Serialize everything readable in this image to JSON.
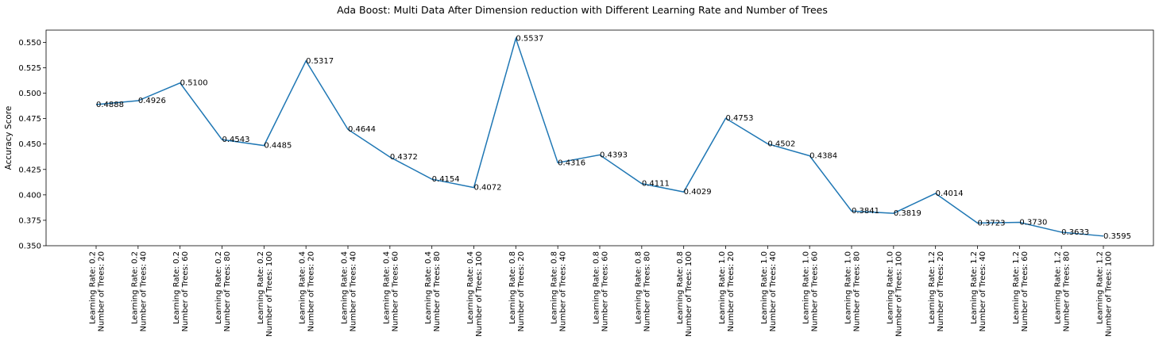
{
  "chart_data": {
    "type": "line",
    "title": "Ada Boost: Multi Data After Dimension reduction with Different Learning Rate and Number of Trees",
    "xlabel": "",
    "ylabel": "Accuracy Score",
    "ylim": [
      0.35,
      0.562
    ],
    "yticks": [
      "0.350",
      "0.375",
      "0.400",
      "0.425",
      "0.450",
      "0.475",
      "0.500",
      "0.525",
      "0.550"
    ],
    "grid": false,
    "line_color": "#1f77b4",
    "categories": [
      [
        "Learning Rate: 0.2",
        "Number of Trees: 20"
      ],
      [
        "Learning Rate: 0.2",
        "Number of Trees: 40"
      ],
      [
        "Learning Rate: 0.2",
        "Number of Trees: 60"
      ],
      [
        "Learning Rate: 0.2",
        "Number of Trees: 80"
      ],
      [
        "Learning Rate: 0.2",
        "Number of Trees: 100"
      ],
      [
        "Learning Rate: 0.4",
        "Number of Trees: 20"
      ],
      [
        "Learning Rate: 0.4",
        "Number of Trees: 40"
      ],
      [
        "Learning Rate: 0.4",
        "Number of Trees: 60"
      ],
      [
        "Learning Rate: 0.4",
        "Number of Trees: 80"
      ],
      [
        "Learning Rate: 0.4",
        "Number of Trees: 100"
      ],
      [
        "Learning Rate: 0.8",
        "Number of Trees: 20"
      ],
      [
        "Learning Rate: 0.8",
        "Number of Trees: 40"
      ],
      [
        "Learning Rate: 0.8",
        "Number of Trees: 60"
      ],
      [
        "Learning Rate: 0.8",
        "Number of Trees: 80"
      ],
      [
        "Learning Rate: 0.8",
        "Number of Trees: 100"
      ],
      [
        "Learning Rate: 1.0",
        "Number of Trees: 20"
      ],
      [
        "Learning Rate: 1.0",
        "Number of Trees: 40"
      ],
      [
        "Learning Rate: 1.0",
        "Number of Trees: 60"
      ],
      [
        "Learning Rate: 1.0",
        "Number of Trees: 80"
      ],
      [
        "Learning Rate: 1.0",
        "Number of Trees: 100"
      ],
      [
        "Learning Rate: 1.2",
        "Number of Trees: 20"
      ],
      [
        "Learning Rate: 1.2",
        "Number of Trees: 40"
      ],
      [
        "Learning Rate: 1.2",
        "Number of Trees: 60"
      ],
      [
        "Learning Rate: 1.2",
        "Number of Trees: 80"
      ],
      [
        "Learning Rate: 1.2",
        "Number of Trees: 100"
      ]
    ],
    "values": [
      0.4888,
      0.4926,
      0.51,
      0.4543,
      0.4485,
      0.5317,
      0.4644,
      0.4372,
      0.4154,
      0.4072,
      0.5537,
      0.4316,
      0.4393,
      0.4111,
      0.4029,
      0.4753,
      0.4502,
      0.4384,
      0.3841,
      0.3819,
      0.4014,
      0.3723,
      0.373,
      0.3633,
      0.3595
    ],
    "data_labels": [
      "0.4888",
      "0.4926",
      "0.5100",
      "0.4543",
      "0.4485",
      "0.5317",
      "0.4644",
      "0.4372",
      "0.4154",
      "0.4072",
      "0.5537",
      "0.4316",
      "0.4393",
      "0.4111",
      "0.4029",
      "0.4753",
      "0.4502",
      "0.4384",
      "0.3841",
      "0.3819",
      "0.4014",
      "0.3723",
      "0.3730",
      "0.3633",
      "0.3595"
    ]
  }
}
